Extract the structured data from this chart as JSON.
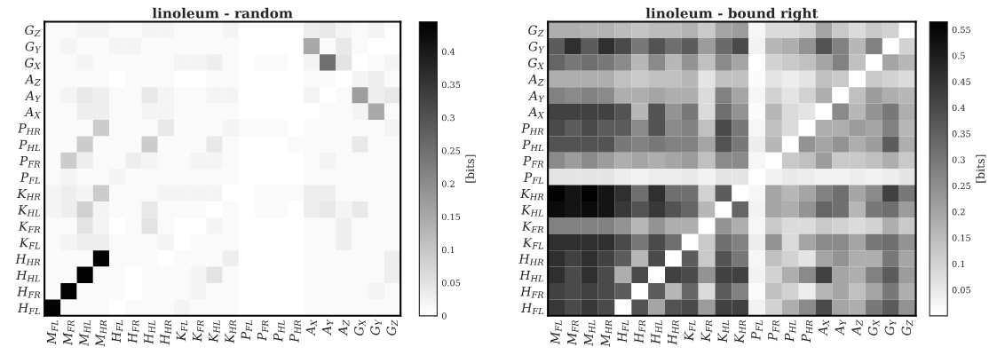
{
  "chart_data": [
    {
      "type": "heatmap",
      "title": "linoleum - random",
      "clabel": "[bits]",
      "clim": [
        0,
        0.445
      ],
      "cticks": [
        0,
        0.05,
        0.1,
        0.15,
        0.2,
        0.25,
        0.3,
        0.35,
        0.4
      ],
      "categories": [
        "M$_{FL}$",
        "M$_{FR}$",
        "M$_{HL}$",
        "M$_{HR}$",
        "H$_{FL}$",
        "H$_{FR}$",
        "H$_{HL}$",
        "H$_{HR}$",
        "K$_{FL}$",
        "K$_{FR}$",
        "K$_{HL}$",
        "K$_{HR}$",
        "P$_{FL}$",
        "P$_{FR}$",
        "P$_{HL}$",
        "P$_{HR}$",
        "A$_{X}$",
        "A$_{Y}$",
        "A$_{Z}$",
        "G$_{X}$",
        "G$_{Y}$",
        "G$_{Z}$"
      ],
      "y_categories": [
        "G$_{Z}$",
        "G$_{Y}$",
        "G$_{X}$",
        "A$_{Z}$",
        "A$_{Y}$",
        "A$_{X}$",
        "P$_{HR}$",
        "P$_{HL}$",
        "P$_{FR}$",
        "P$_{FL}$",
        "K$_{HR}$",
        "K$_{HL}$",
        "K$_{FR}$",
        "K$_{FL}$",
        "H$_{HR}$",
        "H$_{HL}$",
        "H$_{FR}$",
        "H$_{FL}$"
      ],
      "cells": [
        [
          0.01,
          0.01,
          0.02,
          0.02,
          0.01,
          0.01,
          0.02,
          0.02,
          0.01,
          0.01,
          0.01,
          0.02,
          0,
          0,
          0,
          0,
          0.03,
          0.04,
          0.02,
          0.01,
          0.02,
          0
        ],
        [
          0.01,
          0.02,
          0.01,
          0.01,
          0.02,
          0.02,
          0.01,
          0.01,
          0.01,
          0.01,
          0.01,
          0.01,
          0,
          0,
          0,
          0,
          0.15,
          0.01,
          0.04,
          0.01,
          0,
          0
        ],
        [
          0.01,
          0.01,
          0.02,
          0.01,
          0.01,
          0.01,
          0.01,
          0.01,
          0.02,
          0.02,
          0.03,
          0.01,
          0,
          0.01,
          0.01,
          0,
          0.02,
          0.25,
          0.05,
          0,
          0.01,
          0.02
        ],
        [
          0.01,
          0.01,
          0.01,
          0.01,
          0,
          0.01,
          0.01,
          0.01,
          0,
          0,
          0.01,
          0.01,
          0,
          0,
          0,
          0,
          0.01,
          0.01,
          0,
          0.02,
          0.03,
          0.01
        ],
        [
          0.01,
          0.02,
          0.04,
          0.03,
          0.01,
          0.01,
          0.04,
          0.02,
          0.01,
          0.01,
          0.02,
          0.02,
          0,
          0,
          0,
          0,
          0.02,
          0,
          0.01,
          0.17,
          0.03,
          0.04
        ],
        [
          0.01,
          0.01,
          0.03,
          0.03,
          0.01,
          0.01,
          0.02,
          0.02,
          0.01,
          0.01,
          0.01,
          0.01,
          0,
          0,
          0,
          0,
          0,
          0.01,
          0.01,
          0.02,
          0.15,
          0.01
        ],
        [
          0.01,
          0.01,
          0.01,
          0.09,
          0.01,
          0.01,
          0.01,
          0.04,
          0.01,
          0.01,
          0.01,
          0.02,
          0.01,
          0.01,
          0.01,
          0,
          0.01,
          0.01,
          0.01,
          0.01,
          0.01,
          0.02
        ],
        [
          0.01,
          0.01,
          0.09,
          0.01,
          0.01,
          0.01,
          0.09,
          0.01,
          0.01,
          0.01,
          0.04,
          0.01,
          0,
          0,
          0,
          0.01,
          0.01,
          0.01,
          0.01,
          0.04,
          0.01,
          0.01
        ],
        [
          0.01,
          0.09,
          0.03,
          0.01,
          0.01,
          0.03,
          0.02,
          0.01,
          0.01,
          0.02,
          0.02,
          0.01,
          0,
          0,
          0,
          0,
          0.01,
          0.02,
          0.01,
          0.01,
          0.01,
          0.01
        ],
        [
          0.01,
          0.02,
          0.01,
          0.01,
          0.02,
          0.01,
          0.01,
          0.01,
          0.01,
          0.01,
          0.01,
          0.01,
          0,
          0,
          0,
          0,
          0.01,
          0.01,
          0.01,
          0.01,
          0.01,
          0.01
        ],
        [
          0.02,
          0.03,
          0.02,
          0.09,
          0.01,
          0.01,
          0.01,
          0.02,
          0.02,
          0.02,
          0.02,
          0,
          0,
          0.01,
          0.01,
          0.01,
          0.03,
          0.03,
          0.01,
          0.01,
          0.01,
          0.01
        ],
        [
          0.02,
          0.03,
          0.08,
          0.02,
          0.01,
          0.01,
          0.04,
          0.01,
          0.01,
          0.01,
          0,
          0.01,
          0,
          0.01,
          0.01,
          0,
          0.03,
          0.04,
          0.02,
          0.04,
          0.01,
          0.01
        ],
        [
          0.01,
          0.01,
          0.05,
          0.02,
          0,
          0.01,
          0.05,
          0.01,
          0,
          0,
          0.02,
          0.01,
          0,
          0,
          0,
          0,
          0.01,
          0.01,
          0.03,
          0.01,
          0.01,
          0.01
        ],
        [
          0.01,
          0.02,
          0.03,
          0.03,
          0.01,
          0.01,
          0.01,
          0.02,
          0,
          0.01,
          0.01,
          0.01,
          0,
          0,
          0,
          0,
          0.01,
          0.01,
          0.03,
          0.01,
          0.01,
          0.01
        ],
        [
          0.01,
          0.01,
          0.01,
          0.44,
          0.01,
          0.01,
          0.01,
          0,
          0.01,
          0.01,
          0.01,
          0.03,
          0,
          0,
          0,
          0,
          0.01,
          0.01,
          0.01,
          0.01,
          0.01,
          0.03
        ],
        [
          0.01,
          0.01,
          0.44,
          0.01,
          0.01,
          0,
          0.01,
          0.01,
          0.01,
          0.02,
          0.05,
          0.01,
          0,
          0,
          0,
          0,
          0.01,
          0.01,
          0.01,
          0.01,
          0.01,
          0.03
        ],
        [
          0.01,
          0.44,
          0.01,
          0.01,
          0.01,
          0,
          0.01,
          0.01,
          0.01,
          0.02,
          0.01,
          0.01,
          0,
          0,
          0,
          0,
          0.01,
          0.01,
          0.01,
          0.01,
          0.02,
          0.01
        ],
        [
          0.44,
          0.01,
          0.01,
          0.01,
          0,
          0.01,
          0.01,
          0.01,
          0.02,
          0.01,
          0.01,
          0.01,
          0,
          0,
          0,
          0,
          0.01,
          0.01,
          0.01,
          0.01,
          0.01,
          0.01
        ]
      ]
    },
    {
      "type": "heatmap",
      "title": "linoleum - bound right",
      "clabel": "[bits]",
      "clim": [
        0,
        0.565
      ],
      "cticks": [
        0.05,
        0.1,
        0.15,
        0.2,
        0.25,
        0.3,
        0.35,
        0.4,
        0.45,
        0.5,
        0.55
      ],
      "categories": [
        "M$_{FL}$",
        "M$_{FR}$",
        "M$_{HL}$",
        "M$_{HR}$",
        "H$_{FL}$",
        "H$_{FR}$",
        "H$_{HL}$",
        "H$_{HR}$",
        "K$_{FL}$",
        "K$_{FR}$",
        "K$_{HL}$",
        "K$_{HR}$",
        "P$_{FL}$",
        "P$_{FR}$",
        "P$_{HL}$",
        "P$_{HR}$",
        "A$_{X}$",
        "A$_{Y}$",
        "A$_{Z}$",
        "G$_{X}$",
        "G$_{Y}$",
        "G$_{Z}$"
      ],
      "y_categories": [
        "G$_{Z}$",
        "G$_{Y}$",
        "G$_{X}$",
        "A$_{Z}$",
        "A$_{Y}$",
        "A$_{X}$",
        "P$_{HR}$",
        "P$_{HL}$",
        "P$_{FR}$",
        "P$_{FL}$",
        "K$_{HR}$",
        "K$_{HL}$",
        "K$_{FR}$",
        "K$_{FL}$",
        "H$_{HR}$",
        "H$_{HL}$",
        "H$_{FR}$",
        "H$_{FL}$"
      ],
      "cells": [
        [
          0.18,
          0.18,
          0.17,
          0.17,
          0.15,
          0.13,
          0.15,
          0.15,
          0.17,
          0.12,
          0.2,
          0.22,
          0.02,
          0.08,
          0.08,
          0.1,
          0.2,
          0.12,
          0.08,
          0.12,
          0.1,
          0
        ],
        [
          0.36,
          0.46,
          0.36,
          0.46,
          0.4,
          0.3,
          0.38,
          0.32,
          0.36,
          0.22,
          0.33,
          0.4,
          0.03,
          0.16,
          0.18,
          0.24,
          0.38,
          0.28,
          0.16,
          0.28,
          0,
          0.1
        ],
        [
          0.34,
          0.3,
          0.32,
          0.3,
          0.26,
          0.16,
          0.26,
          0.16,
          0.24,
          0.14,
          0.26,
          0.2,
          0,
          0.1,
          0.12,
          0.14,
          0.2,
          0.28,
          0.14,
          0,
          0.2,
          0.16
        ],
        [
          0.18,
          0.18,
          0.18,
          0.18,
          0.14,
          0.12,
          0.14,
          0.14,
          0.16,
          0.06,
          0.14,
          0.14,
          0.01,
          0.06,
          0.04,
          0.06,
          0.14,
          0.12,
          0,
          0.12,
          0.1,
          0.08
        ],
        [
          0.28,
          0.26,
          0.28,
          0.26,
          0.18,
          0.18,
          0.2,
          0.18,
          0.18,
          0.08,
          0.28,
          0.2,
          0.02,
          0.1,
          0.06,
          0.1,
          0.18,
          0,
          0.14,
          0.22,
          0.18,
          0.16
        ],
        [
          0.42,
          0.42,
          0.42,
          0.42,
          0.38,
          0.16,
          0.38,
          0.24,
          0.3,
          0.08,
          0.32,
          0.24,
          0.01,
          0.16,
          0.08,
          0.06,
          0,
          0.26,
          0.16,
          0.24,
          0.3,
          0.18
        ],
        [
          0.4,
          0.36,
          0.4,
          0.36,
          0.36,
          0.26,
          0.38,
          0.26,
          0.28,
          0.14,
          0.4,
          0.3,
          0.02,
          0.14,
          0.08,
          0,
          0.18,
          0.18,
          0.22,
          0.2,
          0.28,
          0.16
        ],
        [
          0.38,
          0.38,
          0.38,
          0.38,
          0.3,
          0.28,
          0.3,
          0.28,
          0.28,
          0.2,
          0.38,
          0.3,
          0.04,
          0.16,
          0,
          0.24,
          0.2,
          0.24,
          0.18,
          0.22,
          0.36,
          0.18
        ],
        [
          0.26,
          0.22,
          0.26,
          0.22,
          0.18,
          0.2,
          0.18,
          0.2,
          0.22,
          0.14,
          0.26,
          0.26,
          0.02,
          0,
          0.12,
          0.14,
          0.22,
          0.12,
          0.12,
          0.14,
          0.18,
          0.12
        ],
        [
          0.06,
          0.06,
          0.06,
          0.06,
          0.04,
          0.03,
          0.04,
          0.04,
          0.05,
          0.03,
          0.06,
          0.06,
          0,
          0.03,
          0.05,
          0.04,
          0.03,
          0.03,
          0.04,
          0.03,
          0.04,
          0.06
        ],
        [
          0.56,
          0.52,
          0.56,
          0.52,
          0.46,
          0.32,
          0.46,
          0.32,
          0.32,
          0.1,
          0.36,
          0,
          0.02,
          0.2,
          0.16,
          0.2,
          0.28,
          0.32,
          0.2,
          0.26,
          0.42,
          0.3
        ],
        [
          0.54,
          0.52,
          0.54,
          0.52,
          0.44,
          0.38,
          0.44,
          0.38,
          0.34,
          0.16,
          0,
          0.34,
          0.03,
          0.2,
          0.18,
          0.24,
          0.34,
          0.32,
          0.16,
          0.3,
          0.32,
          0.22
        ],
        [
          0.28,
          0.28,
          0.28,
          0.28,
          0.24,
          0.16,
          0.24,
          0.18,
          0.18,
          0,
          0.24,
          0.18,
          0.02,
          0.12,
          0.08,
          0.08,
          0.12,
          0.1,
          0.08,
          0.1,
          0.18,
          0.12
        ],
        [
          0.46,
          0.46,
          0.46,
          0.46,
          0.4,
          0.3,
          0.4,
          0.32,
          0,
          0.12,
          0.32,
          0.28,
          0.04,
          0.24,
          0.08,
          0.2,
          0.26,
          0.26,
          0.2,
          0.3,
          0.32,
          0.24
        ],
        [
          0.46,
          0.42,
          0.46,
          0.42,
          0.36,
          0.16,
          0.4,
          0,
          0.36,
          0.12,
          0.38,
          0.3,
          0.02,
          0.14,
          0.1,
          0.06,
          0.2,
          0.24,
          0.18,
          0.18,
          0.3,
          0.2
        ],
        [
          0.46,
          0.4,
          0.46,
          0.4,
          0.18,
          0.4,
          0,
          0.42,
          0.4,
          0.24,
          0.42,
          0.42,
          0.03,
          0.1,
          0.18,
          0.26,
          0.42,
          0.2,
          0.18,
          0.28,
          0.36,
          0.22
        ],
        [
          0.42,
          0.4,
          0.42,
          0.4,
          0.36,
          0,
          0.36,
          0.16,
          0.34,
          0.08,
          0.36,
          0.28,
          0.01,
          0.14,
          0.1,
          0.04,
          0.16,
          0.2,
          0.14,
          0.2,
          0.3,
          0.18
        ],
        [
          0.44,
          0.4,
          0.44,
          0.4,
          0,
          0.38,
          0.2,
          0.38,
          0.4,
          0.22,
          0.42,
          0.42,
          0.03,
          0.1,
          0.18,
          0.26,
          0.4,
          0.2,
          0.18,
          0.3,
          0.36,
          0.24
        ]
      ]
    }
  ]
}
